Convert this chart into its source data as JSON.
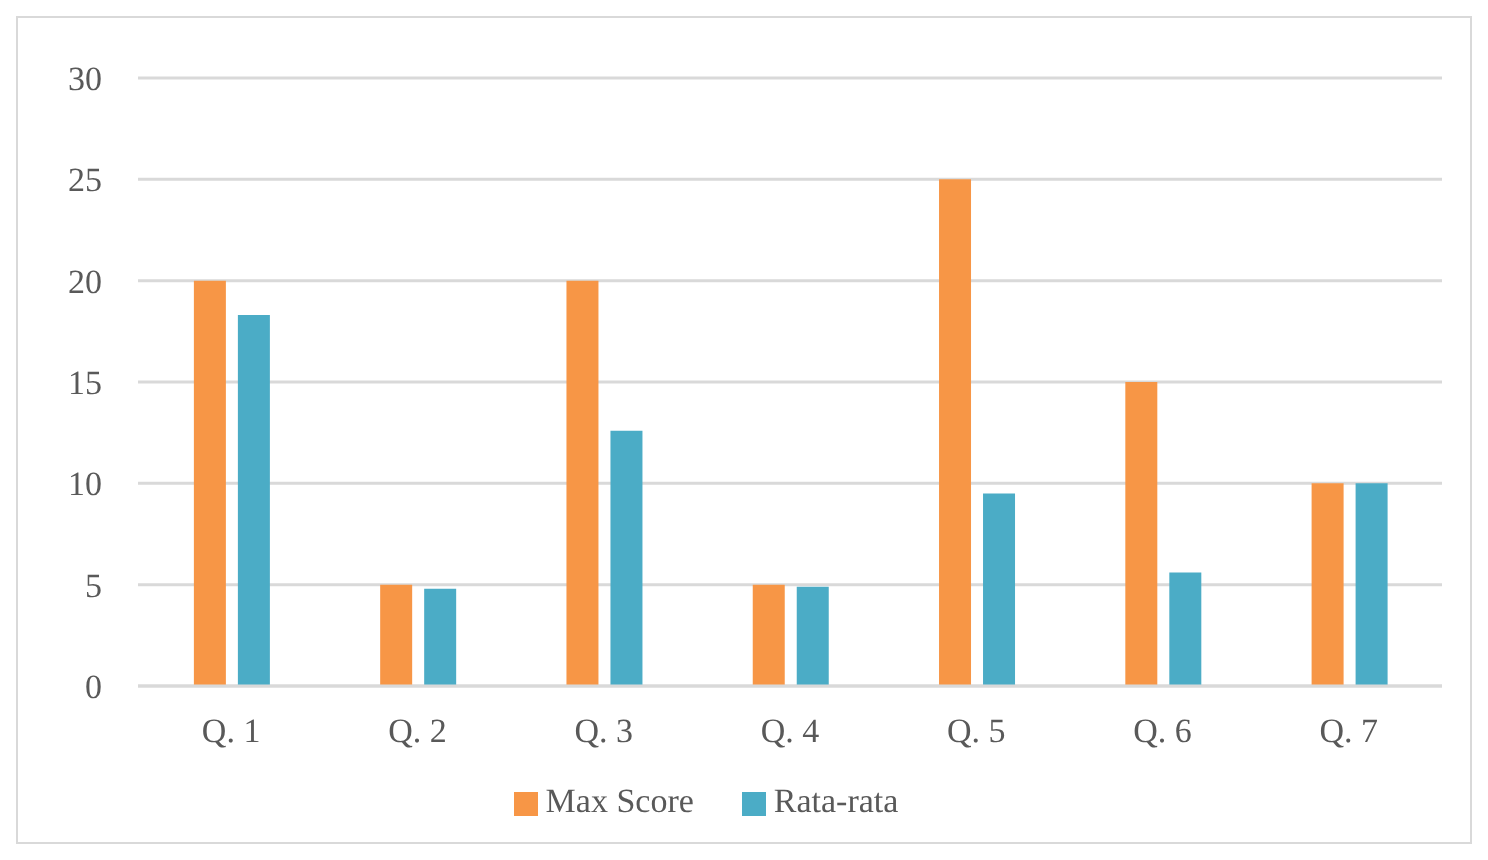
{
  "chart_data": {
    "type": "bar",
    "categories": [
      "Q. 1",
      "Q. 2",
      "Q. 3",
      "Q. 4",
      "Q. 5",
      "Q. 6",
      "Q. 7"
    ],
    "series": [
      {
        "name": "Max Score",
        "color": "#f79646",
        "values": [
          20,
          5,
          20,
          5,
          25,
          15,
          10
        ]
      },
      {
        "name": "Rata-rata",
        "color": "#4bacc6",
        "values": [
          18.3,
          4.8,
          12.6,
          4.9,
          9.5,
          5.6,
          10
        ]
      }
    ],
    "ylim": [
      0,
      30
    ],
    "yticks": [
      0,
      5,
      10,
      15,
      20,
      25,
      30
    ],
    "grid": "y",
    "legend": "bottom"
  }
}
